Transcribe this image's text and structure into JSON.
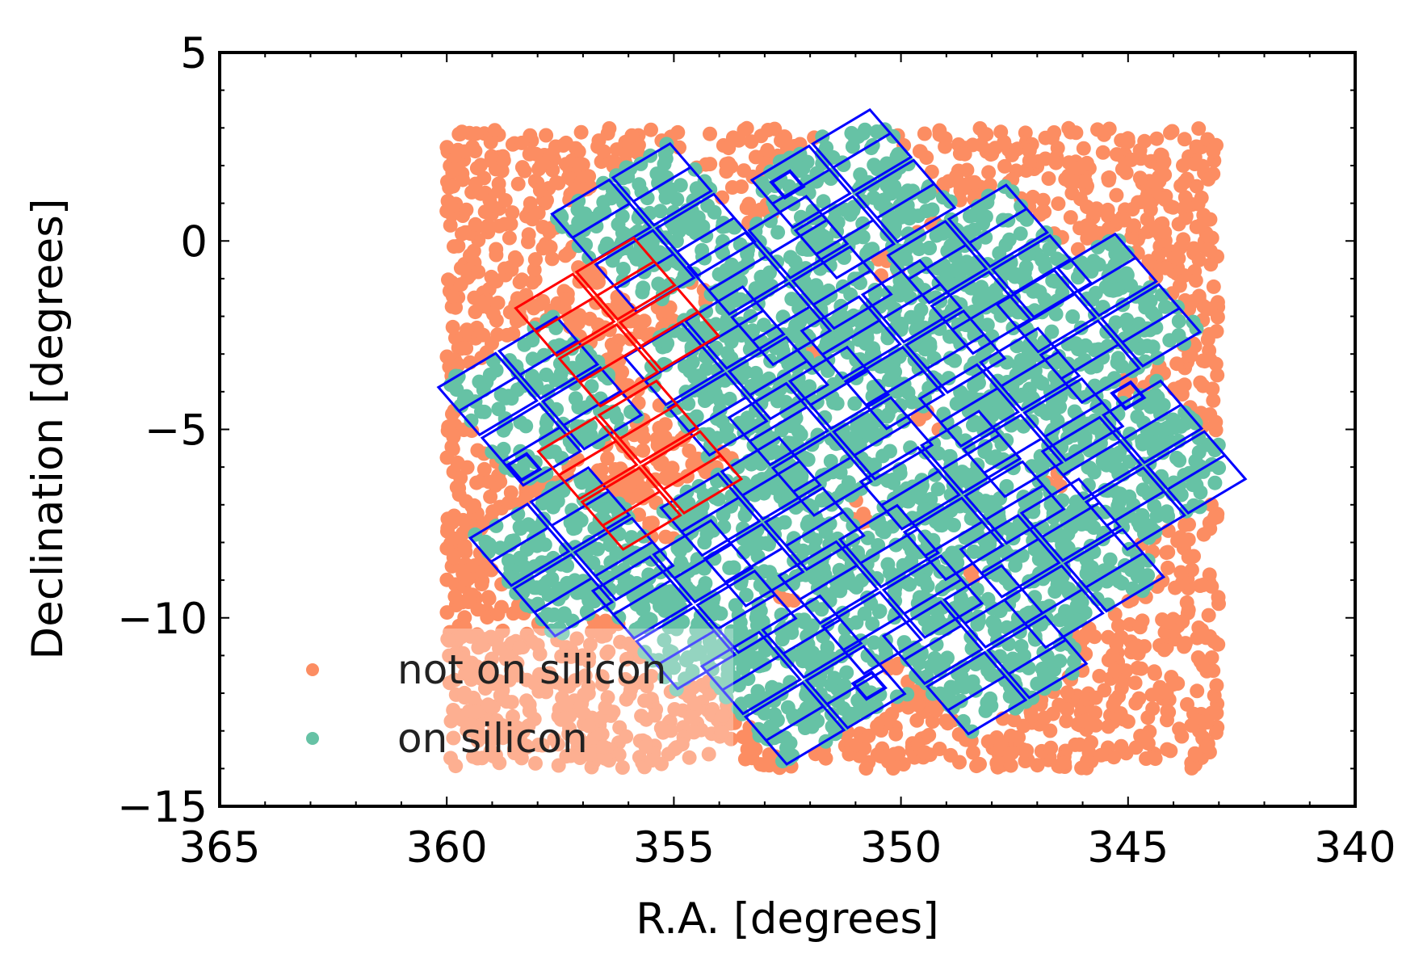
{
  "chart_data": {
    "type": "scatter",
    "title": "",
    "xlabel": "R.A. [degrees]",
    "ylabel": "Declination [degrees]",
    "xlim": [
      365,
      340
    ],
    "ylim": [
      -15,
      5
    ],
    "x_inverted": true,
    "xticks": [
      365,
      360,
      355,
      350,
      345,
      340
    ],
    "xtick_labels": [
      "365",
      "360",
      "355",
      "350",
      "345",
      "340"
    ],
    "yticks": [
      5,
      0,
      -5,
      -10,
      -15
    ],
    "ytick_labels": [
      "5",
      "0",
      "−5",
      "−10",
      "−15"
    ],
    "grid": false,
    "legend_position": "lower-left",
    "series": [
      {
        "name": "not on silicon",
        "color": "#fc8d62",
        "region": {
          "ra": [
            343,
            360
          ],
          "dec": [
            -14,
            3
          ]
        },
        "approx_points": 4200
      },
      {
        "name": "on silicon",
        "color": "#66c2a5"
      }
    ],
    "footprint": {
      "chip_outline_color": "#0000ff",
      "masked_chip_color": "#ff0000",
      "modules": [
        {
          "ra": 355.45,
          "dec": 0.35,
          "status": "active"
        },
        {
          "ra": 351.05,
          "dec": 1.25,
          "status": "active"
        },
        {
          "ra": 348.05,
          "dec": -0.75,
          "status": "active"
        },
        {
          "ra": 345.65,
          "dec": -2.05,
          "status": "active"
        },
        {
          "ra": 352.45,
          "dec": -1.05,
          "status": "active"
        },
        {
          "ra": 349.95,
          "dec": -2.75,
          "status": "active"
        },
        {
          "ra": 353.85,
          "dec": -3.45,
          "status": "active"
        },
        {
          "ra": 347.35,
          "dec": -4.55,
          "status": "active"
        },
        {
          "ra": 357.95,
          "dec": -4.25,
          "status": "active"
        },
        {
          "ra": 351.55,
          "dec": -5.05,
          "status": "active"
        },
        {
          "ra": 344.65,
          "dec": -5.95,
          "status": "active"
        },
        {
          "ra": 348.65,
          "dec": -6.75,
          "status": "active"
        },
        {
          "ra": 353.05,
          "dec": -7.45,
          "status": "active"
        },
        {
          "ra": 346.45,
          "dec": -8.55,
          "status": "active"
        },
        {
          "ra": 357.25,
          "dec": -8.25,
          "status": "active"
        },
        {
          "ra": 350.45,
          "dec": -9.25,
          "status": "active"
        },
        {
          "ra": 354.55,
          "dec": -9.65,
          "status": "active"
        },
        {
          "ra": 348.15,
          "dec": -10.85,
          "status": "active"
        },
        {
          "ra": 352.15,
          "dec": -11.65,
          "status": "active"
        },
        {
          "ra": 356.25,
          "dec": -2.15,
          "status": "masked"
        },
        {
          "ra": 355.75,
          "dec": -5.95,
          "status": "masked"
        }
      ],
      "fine_guidance_sensors": [
        {
          "ra": 352.5,
          "dec": 1.5
        },
        {
          "ra": 358.3,
          "dec": -6.0
        },
        {
          "ra": 345.0,
          "dec": -4.1
        },
        {
          "ra": 350.7,
          "dec": -11.8
        }
      ]
    }
  }
}
